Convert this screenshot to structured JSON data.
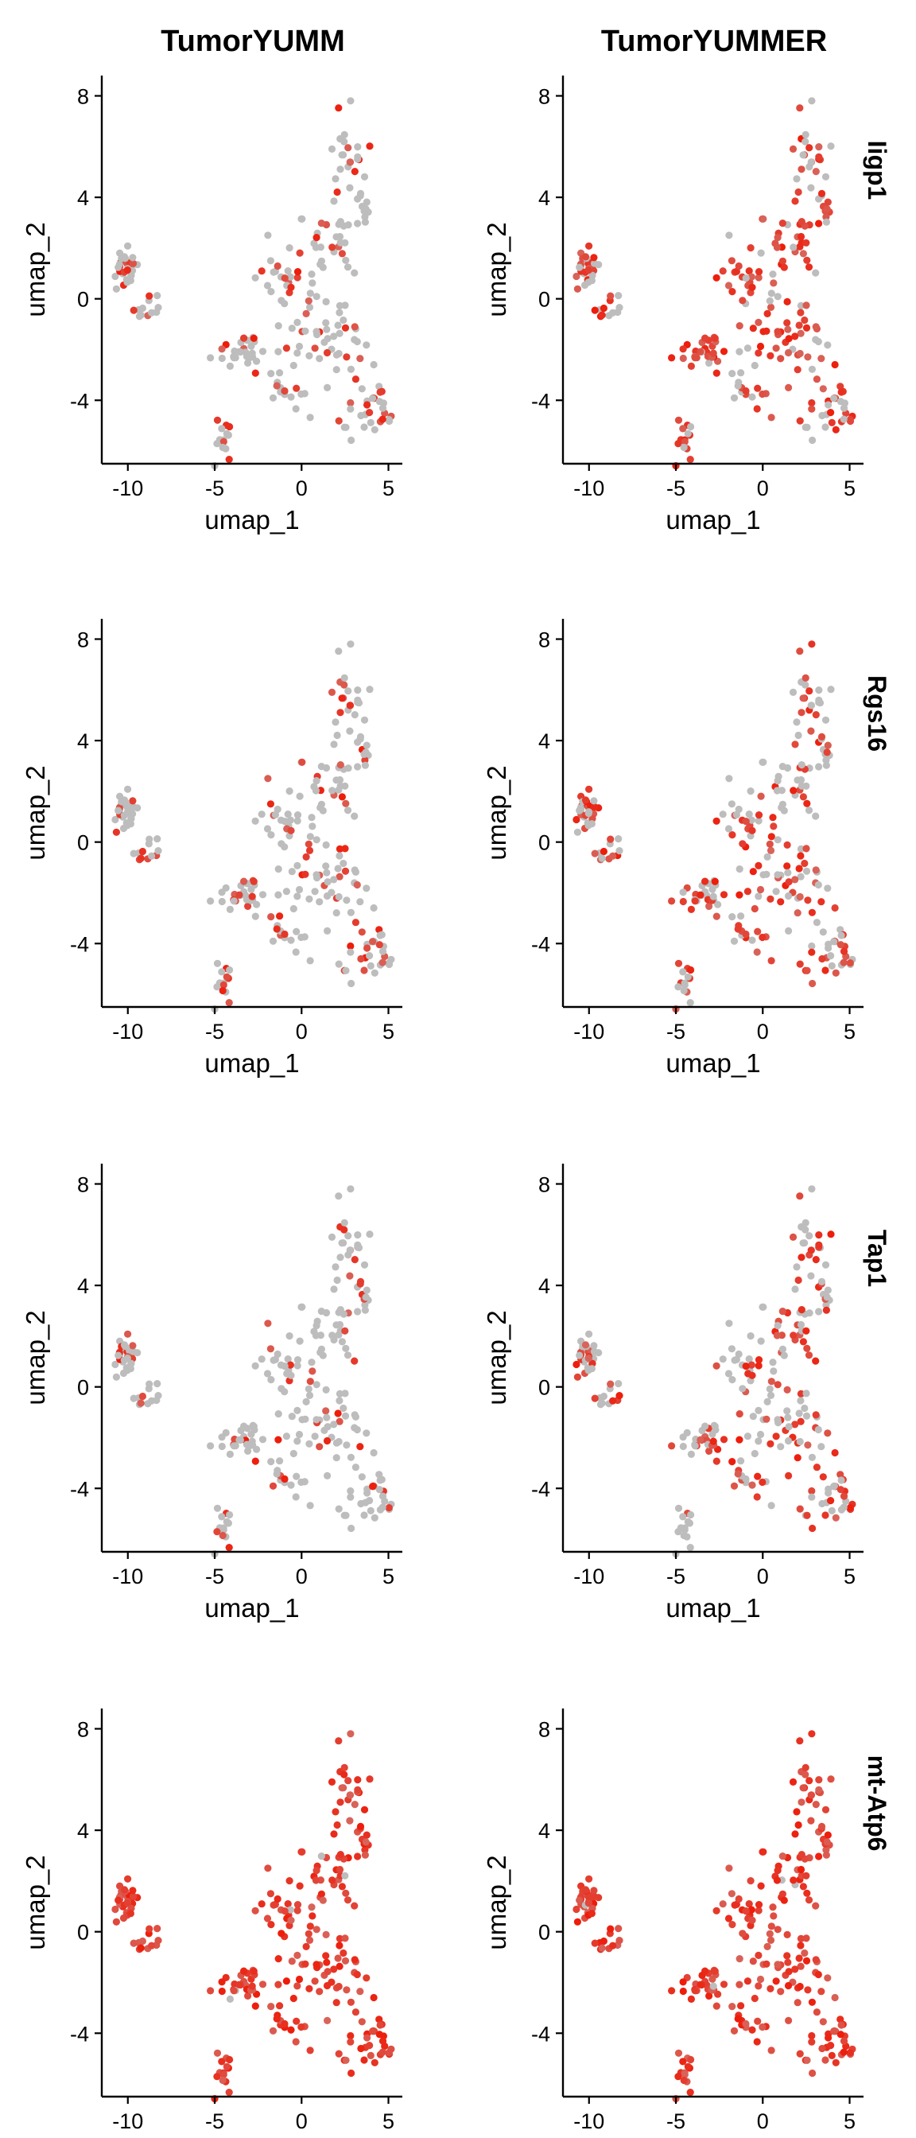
{
  "column_titles": [
    "TumorYUMM",
    "TumorYUMMER"
  ],
  "row_labels": [
    "Iigp1",
    "Rgs16",
    "Tap1",
    "mt-Atp6"
  ],
  "colors": {
    "low": "#bdbdbd",
    "high": "#ee1c0a",
    "axis": "#000000"
  },
  "chart_data": {
    "type": "scatter",
    "title": "",
    "xlabel": "umap_1",
    "ylabel": "umap_2",
    "xlim": [
      -11.5,
      5.8
    ],
    "ylim": [
      -6.5,
      8.8
    ],
    "xticks": [
      -10,
      -5,
      0,
      5
    ],
    "yticks": [
      -4,
      0,
      4,
      8
    ],
    "xtick_labels": [
      "-10",
      "-5",
      "0",
      "5"
    ],
    "ytick_labels": [
      "-4",
      "0",
      "4",
      "8"
    ],
    "grid": false,
    "color_encoding": "feature expression (grey = low, red = high)",
    "panels": [
      {
        "condition": "TumorYUMM",
        "gene": "Iigp1",
        "expressing_fraction": 0.32
      },
      {
        "condition": "TumorYUMMER",
        "gene": "Iigp1",
        "expressing_fraction": 0.72
      },
      {
        "condition": "TumorYUMM",
        "gene": "Rgs16",
        "expressing_fraction": 0.25
      },
      {
        "condition": "TumorYUMMER",
        "gene": "Rgs16",
        "expressing_fraction": 0.5
      },
      {
        "condition": "TumorYUMM",
        "gene": "Tap1",
        "expressing_fraction": 0.18
      },
      {
        "condition": "TumorYUMMER",
        "gene": "Tap1",
        "expressing_fraction": 0.45
      },
      {
        "condition": "TumorYUMM",
        "gene": "mt-Atp6",
        "expressing_fraction": 0.98
      },
      {
        "condition": "TumorYUMMER",
        "gene": "mt-Atp6",
        "expressing_fraction": 0.98
      }
    ],
    "clusters": [
      {
        "x": -10.2,
        "y": 1.1,
        "sx": 0.4,
        "sy": 0.4,
        "n": 30
      },
      {
        "x": -8.8,
        "y": -0.4,
        "sx": 0.6,
        "sy": 0.3,
        "n": 12
      },
      {
        "x": -4.5,
        "y": -5.2,
        "sx": 0.25,
        "sy": 0.5,
        "n": 14
      },
      {
        "x": -3.2,
        "y": -2.0,
        "sx": 1.0,
        "sy": 0.35,
        "n": 28
      },
      {
        "x": -0.5,
        "y": 0.5,
        "sx": 0.9,
        "sy": 1.3,
        "n": 40
      },
      {
        "x": 1.8,
        "y": -1.8,
        "sx": 1.2,
        "sy": 1.2,
        "n": 50
      },
      {
        "x": 4.3,
        "y": -4.6,
        "sx": 0.4,
        "sy": 0.45,
        "n": 22
      },
      {
        "x": 2.6,
        "y": 5.5,
        "sx": 0.6,
        "sy": 0.9,
        "n": 24
      },
      {
        "x": 3.6,
        "y": 3.5,
        "sx": 0.35,
        "sy": 0.6,
        "n": 12
      },
      {
        "x": 1.6,
        "y": 2.2,
        "sx": 0.8,
        "sy": 0.6,
        "n": 20
      },
      {
        "x": -0.8,
        "y": -3.8,
        "sx": 0.7,
        "sy": 0.4,
        "n": 14
      }
    ]
  }
}
